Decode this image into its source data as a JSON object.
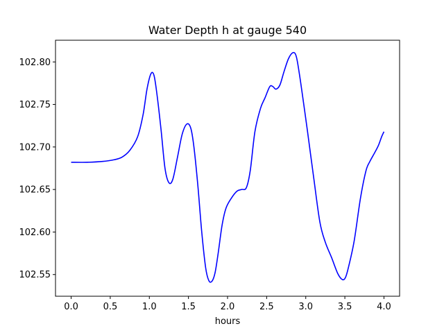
{
  "chart_data": {
    "type": "line",
    "title": "Water Depth h at gauge 540",
    "xlabel": "hours",
    "ylabel": "",
    "xlim": [
      -0.2,
      4.2
    ],
    "ylim": [
      102.5245,
      102.8255
    ],
    "grid": false,
    "legend": "none",
    "x_ticks": [
      "0.0",
      "0.5",
      "1.0",
      "1.5",
      "2.0",
      "2.5",
      "3.0",
      "3.5",
      "4.0"
    ],
    "x_tick_values": [
      0.0,
      0.5,
      1.0,
      1.5,
      2.0,
      2.5,
      3.0,
      3.5,
      4.0
    ],
    "y_ticks": [
      "102.55",
      "102.60",
      "102.65",
      "102.70",
      "102.75",
      "102.80"
    ],
    "y_tick_values": [
      102.55,
      102.6,
      102.65,
      102.7,
      102.75,
      102.8
    ],
    "series": [
      {
        "color": "#0000ff",
        "x": [
          0.0,
          0.2,
          0.4,
          0.55,
          0.65,
          0.75,
          0.85,
          0.92,
          0.97,
          1.02,
          1.06,
          1.1,
          1.15,
          1.2,
          1.25,
          1.3,
          1.36,
          1.42,
          1.48,
          1.53,
          1.57,
          1.62,
          1.67,
          1.72,
          1.76,
          1.8,
          1.84,
          1.88,
          1.93,
          1.98,
          2.05,
          2.12,
          2.18,
          2.24,
          2.29,
          2.35,
          2.42,
          2.48,
          2.54,
          2.58,
          2.62,
          2.67,
          2.72,
          2.78,
          2.84,
          2.88,
          2.92,
          2.97,
          3.02,
          3.1,
          3.18,
          3.25,
          3.33,
          3.41,
          3.47,
          3.51,
          3.55,
          3.62,
          3.7,
          3.77,
          3.82,
          3.88,
          3.93,
          3.97,
          4.0
        ],
        "values": [
          102.682,
          102.682,
          102.683,
          102.685,
          102.688,
          102.696,
          102.712,
          102.738,
          102.768,
          102.786,
          102.784,
          102.76,
          102.72,
          102.675,
          102.658,
          102.662,
          102.688,
          102.715,
          102.727,
          102.722,
          102.7,
          102.655,
          102.6,
          102.558,
          102.543,
          102.542,
          102.552,
          102.575,
          102.608,
          102.628,
          102.64,
          102.648,
          102.65,
          102.652,
          102.672,
          102.718,
          102.745,
          102.758,
          102.771,
          102.771,
          102.768,
          102.773,
          102.788,
          102.804,
          102.811,
          102.806,
          102.785,
          102.753,
          102.72,
          102.665,
          102.612,
          102.588,
          102.57,
          102.551,
          102.544,
          102.547,
          102.56,
          102.59,
          102.64,
          102.672,
          102.683,
          102.693,
          102.702,
          102.712,
          102.718
        ]
      }
    ]
  }
}
